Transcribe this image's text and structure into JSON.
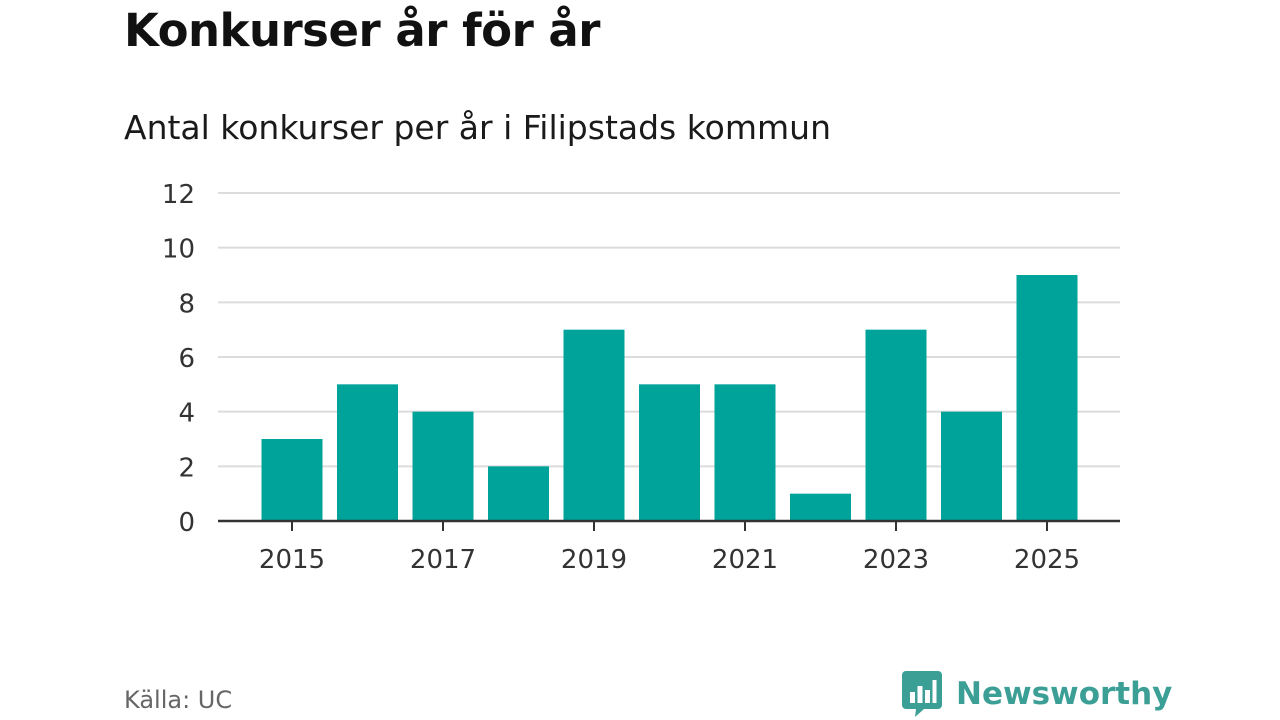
{
  "chart_data": {
    "type": "bar",
    "title": "Konkurser år för år",
    "subtitle": "Antal konkurser per år i Filipstads kommun",
    "categories": [
      "2015",
      "2016",
      "2017",
      "2018",
      "2019",
      "2020",
      "2021",
      "2022",
      "2023",
      "2024",
      "2025"
    ],
    "values": [
      3,
      5,
      4,
      2,
      7,
      5,
      5,
      1,
      7,
      4,
      9
    ],
    "x_tick_labels": [
      "2015",
      "2017",
      "2019",
      "2021",
      "2023",
      "2025"
    ],
    "y_ticks": [
      0,
      2,
      4,
      6,
      8,
      10,
      12
    ],
    "ylim": [
      0,
      12
    ],
    "grid": true,
    "bar_color": "#00a39a"
  },
  "footer": {
    "source": "Källa: UC",
    "brand": "Newsworthy",
    "brand_color": "#3c9f96",
    "brand_icon": "bar-chart-speech-bubble-icon"
  }
}
